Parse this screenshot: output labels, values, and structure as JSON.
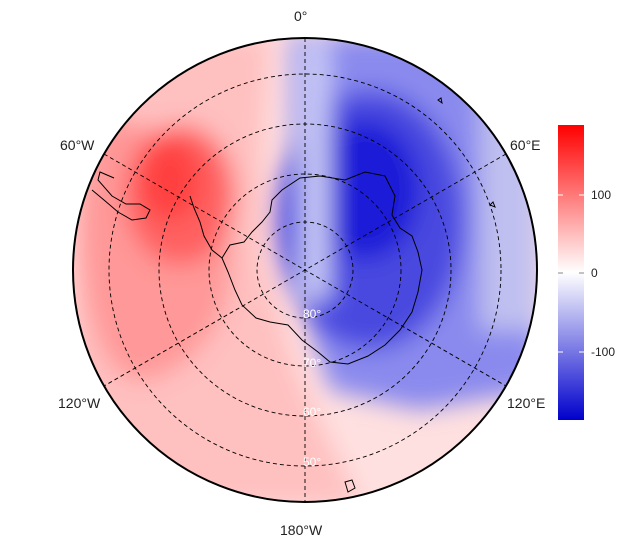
{
  "map": {
    "projection": "south-polar stereographic",
    "variable_range": [
      -180,
      180
    ],
    "longitude_labels": {
      "top": "0°",
      "upper_left": "60°W",
      "upper_right": "60°E",
      "lower_left": "120°W",
      "lower_right": "120°E",
      "bottom": "180°W"
    },
    "latitude_labels": [
      "80°",
      "70°",
      "60°",
      "50°"
    ],
    "colorbar": {
      "colors": {
        "low": "#0000cc",
        "mid": "#ffffff",
        "high": "#ff0000"
      },
      "ticks": [
        "100",
        "0",
        "-100"
      ]
    }
  }
}
